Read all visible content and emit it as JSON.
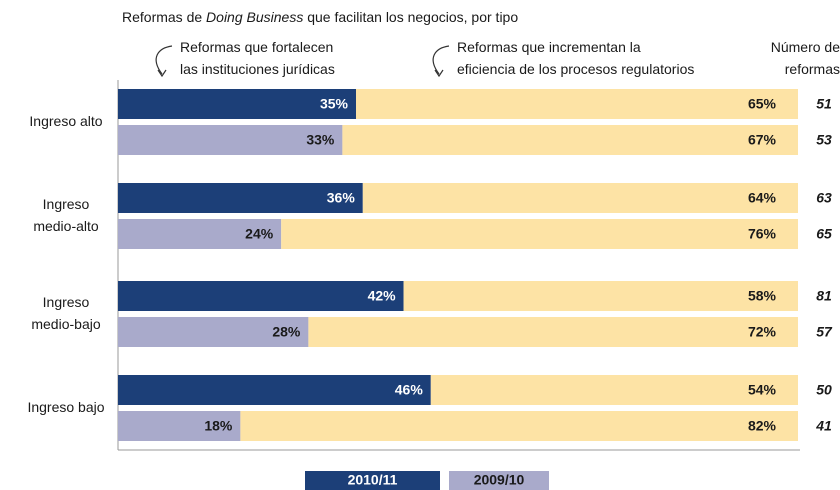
{
  "chart_data": {
    "type": "bar",
    "orientation": "horizontal",
    "stacked": true,
    "title_parts": [
      "Reformas de ",
      "Doing Business",
      " que facilitan los negocios, por tipo"
    ],
    "categories": [
      "Ingreso alto",
      "Ingreso\nmedio-alto",
      "Ingreso\nmedio-bajo",
      "Ingreso bajo"
    ],
    "segment_names": [
      "Reformas que fortalecen\nlas instituciones jurídicas",
      "Reformas que incrementan la\neficiencia de los procesos regulatorios"
    ],
    "reforms_label": "Número de\nreformas",
    "xlim": [
      0,
      100
    ],
    "series": [
      {
        "name": "2010/11",
        "color": "#1c3f78",
        "label_color": "#ffffff",
        "regulatory_color": "#fde3a5",
        "legal": [
          35,
          36,
          42,
          46
        ],
        "legal_labels": [
          "35%",
          "36%",
          "42%",
          "46%"
        ],
        "regulatory": [
          65,
          64,
          58,
          54
        ],
        "regulatory_labels": [
          "65%",
          "64%",
          "58%",
          "54%"
        ],
        "reforms": [
          51,
          63,
          81,
          50
        ]
      },
      {
        "name": "2009/10",
        "color": "#a9aacb",
        "label_color": "#1a1a1a",
        "regulatory_color": "#fde3a5",
        "legal": [
          33,
          24,
          28,
          18
        ],
        "legal_labels": [
          "33%",
          "24%",
          "28%",
          "18%"
        ],
        "regulatory": [
          67,
          76,
          72,
          82
        ],
        "regulatory_labels": [
          "67%",
          "76%",
          "72%",
          "82%"
        ],
        "reforms": [
          53,
          65,
          57,
          41
        ]
      }
    ]
  }
}
